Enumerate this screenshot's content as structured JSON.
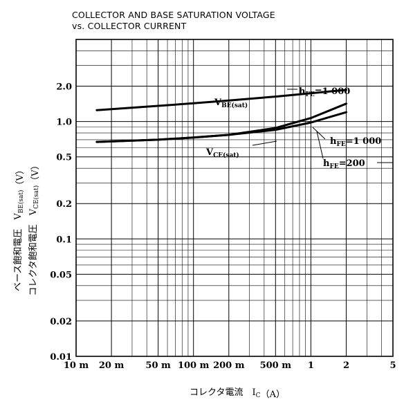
{
  "title": {
    "line1": "COLLECTOR AND BASE SATURATION VOLTAGE",
    "line2": "vs. COLLECTOR CURRENT"
  },
  "chart_data": {
    "type": "line",
    "x_scale": "log",
    "y_scale": "log",
    "xlim": [
      0.01,
      5
    ],
    "ylim": [
      0.01,
      5
    ],
    "x_ticks": [
      {
        "value": 0.01,
        "label": "10 m"
      },
      {
        "value": 0.02,
        "label": "20 m"
      },
      {
        "value": 0.05,
        "label": "50 m"
      },
      {
        "value": 0.1,
        "label": "100 m"
      },
      {
        "value": 0.2,
        "label": "200 m"
      },
      {
        "value": 0.5,
        "label": "500 m"
      },
      {
        "value": 1,
        "label": "1"
      },
      {
        "value": 2,
        "label": "2"
      },
      {
        "value": 5,
        "label": "5"
      }
    ],
    "y_ticks": [
      {
        "value": 0.01,
        "label": "0.01"
      },
      {
        "value": 0.02,
        "label": "0.02"
      },
      {
        "value": 0.05,
        "label": "0.05"
      },
      {
        "value": 0.1,
        "label": "0.1"
      },
      {
        "value": 0.2,
        "label": "0.2"
      },
      {
        "value": 0.5,
        "label": "0.5"
      },
      {
        "value": 1,
        "label": "1.0"
      },
      {
        "value": 2,
        "label": "2.0"
      }
    ],
    "xlabel": "コレクタ電流　IC（A）",
    "ylabel_left": "ベース飽和電圧　VBE(sat)（V）",
    "ylabel_right": "コレクタ飽和電圧　VCE(sat)（V）",
    "series": [
      {
        "name": "VBE(sat) hFE=1 000",
        "x": [
          0.015,
          0.05,
          0.1,
          0.2,
          0.5,
          1,
          2
        ],
        "y": [
          1.25,
          1.36,
          1.43,
          1.51,
          1.63,
          1.74,
          1.86
        ]
      },
      {
        "name": "VCE(sat) hFE=1 000",
        "x": [
          0.015,
          0.05,
          0.1,
          0.2,
          0.5,
          1,
          2
        ],
        "y": [
          0.67,
          0.7,
          0.73,
          0.77,
          0.88,
          1.07,
          1.42
        ]
      },
      {
        "name": "VCE(sat) hFE=200",
        "x": [
          0.015,
          0.05,
          0.1,
          0.2,
          0.5,
          1,
          2
        ],
        "y": [
          0.67,
          0.7,
          0.73,
          0.77,
          0.85,
          0.98,
          1.2
        ]
      }
    ],
    "annotations": {
      "vbe_label": "VBE(sat)",
      "vce_label": "VCE(sat)",
      "hfe_top": "hFE=1 000",
      "hfe_mid": "hFE=1 000",
      "hfe_low": "hFE=200"
    },
    "grid": true
  }
}
